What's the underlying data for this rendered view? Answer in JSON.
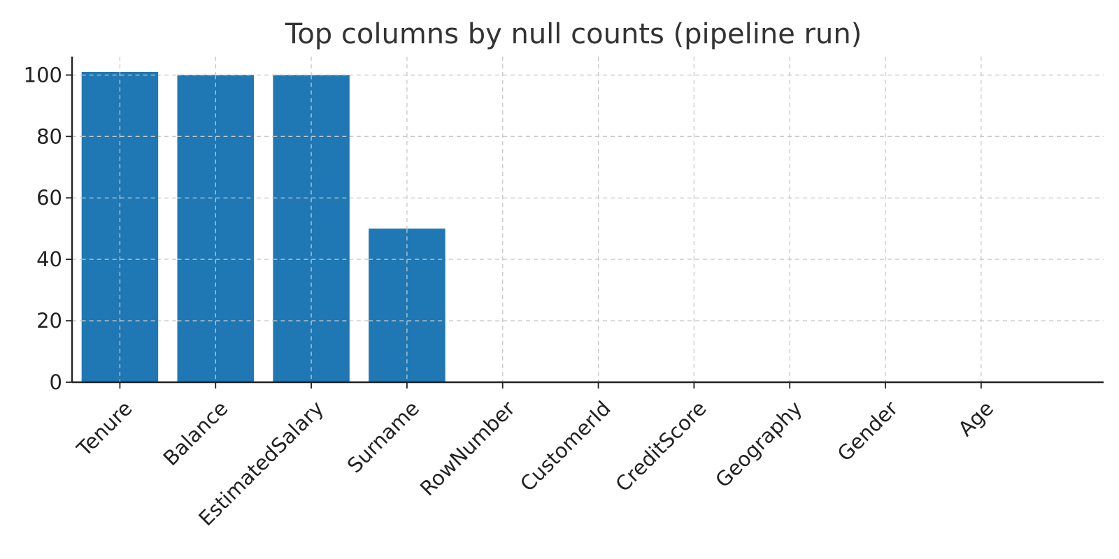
{
  "chart_data": {
    "type": "bar",
    "title": "Top columns by null counts (pipeline run)",
    "xlabel": "",
    "ylabel": "",
    "categories": [
      "Tenure",
      "Balance",
      "EstimatedSalary",
      "Surname",
      "RowNumber",
      "CustomerId",
      "CreditScore",
      "Geography",
      "Gender",
      "Age"
    ],
    "values": [
      101,
      100,
      100,
      50,
      0,
      0,
      0,
      0,
      0,
      0
    ],
    "ylim": [
      0,
      106
    ],
    "yticks": [
      0,
      20,
      40,
      60,
      80,
      100
    ],
    "grid": true,
    "legend": "none",
    "bar_color": "#1f77b4"
  }
}
